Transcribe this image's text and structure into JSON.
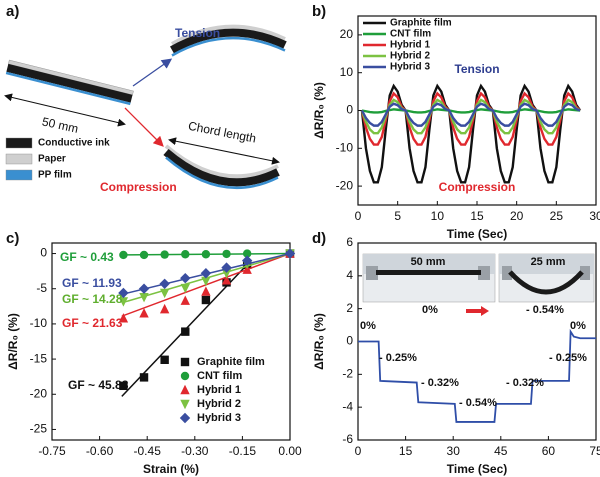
{
  "diagram": {
    "panel_label": "a)",
    "tension": "Tension",
    "length": "50 mm",
    "chord": "Chord length",
    "compression": "Compression",
    "legend": [
      {
        "name": "Conductive ink",
        "color": "#1a1a1a"
      },
      {
        "name": "Paper",
        "color": "#cfcfcf"
      },
      {
        "name": "PP film",
        "color": "#3a8fd0"
      }
    ]
  },
  "chart_data": [
    {
      "type": "line",
      "panel_label": "b)",
      "xlabel": "Time (Sec)",
      "ylabel": "ΔR/R₀ (%)",
      "xlim": [
        0,
        30
      ],
      "ylim": [
        -25,
        25
      ],
      "xticks": [
        0,
        5,
        10,
        15,
        20,
        25,
        30
      ],
      "yticks": [
        -20,
        -10,
        0,
        10,
        20
      ],
      "legend": "upper left",
      "x": [
        0.5,
        1,
        1.5,
        2,
        2.5,
        3,
        3.5,
        4,
        4.5,
        5,
        5.5,
        6,
        6.5,
        7,
        7.5,
        8,
        8.5,
        9,
        9.5,
        10,
        10.5,
        11,
        11.5,
        12,
        12.5,
        13,
        13.5,
        14,
        14.5,
        15,
        15.5,
        16,
        16.5,
        17,
        17.5,
        18,
        18.5,
        19,
        19.5,
        20,
        20.5,
        21,
        21.5,
        22,
        22.5,
        23,
        23.5,
        24,
        24.5,
        25,
        25.5,
        26,
        26.5,
        27,
        27.5,
        28
      ],
      "series": [
        {
          "name": "Graphite film",
          "color": "#111111",
          "values": [
            0,
            -10,
            -16,
            -19,
            -19,
            -15,
            -5,
            4,
            6.5,
            5,
            1.5,
            0,
            -10,
            -16,
            -19,
            -19,
            -15,
            -5,
            4,
            6.5,
            5,
            1.5,
            0,
            -10,
            -16,
            -19,
            -19,
            -15,
            -5,
            4,
            6.5,
            5,
            1.5,
            0,
            -10,
            -16,
            -19,
            -19,
            -15,
            -5,
            4,
            6.5,
            5,
            1.5,
            0,
            -10,
            -16,
            -19,
            -19,
            -15,
            -5,
            4,
            6.5,
            5,
            1.5,
            0
          ]
        },
        {
          "name": "CNT film",
          "color": "#1f9e3a",
          "values": [
            0,
            -0.2,
            -0.4,
            -0.5,
            -0.5,
            -0.4,
            -0.1,
            0.1,
            0.3,
            0.2,
            0.1,
            0,
            -0.2,
            -0.4,
            -0.5,
            -0.5,
            -0.4,
            -0.1,
            0.1,
            0.3,
            0.2,
            0.1,
            0,
            -0.2,
            -0.4,
            -0.5,
            -0.5,
            -0.4,
            -0.1,
            0.1,
            0.3,
            0.2,
            0.1,
            0,
            -0.2,
            -0.4,
            -0.5,
            -0.5,
            -0.4,
            -0.1,
            0.1,
            0.3,
            0.2,
            0.1,
            0,
            -0.2,
            -0.4,
            -0.5,
            -0.5,
            -0.4,
            -0.1,
            0.1,
            0.3,
            0.2,
            0.1,
            0
          ]
        },
        {
          "name": "Hybrid 1",
          "color": "#e0282e",
          "values": [
            0,
            -4.5,
            -7.5,
            -9,
            -9,
            -7,
            -2.5,
            2.5,
            4.5,
            3.5,
            1,
            0,
            -4.5,
            -7.5,
            -9,
            -9,
            -7,
            -2.5,
            2.5,
            4.5,
            3.5,
            1,
            0,
            -4.5,
            -7.5,
            -9,
            -9,
            -7,
            -2.5,
            2.5,
            4.5,
            3.5,
            1,
            0,
            -4.5,
            -7.5,
            -9,
            -9,
            -7,
            -2.5,
            2.5,
            4.5,
            3.5,
            1,
            0,
            -4.5,
            -7.5,
            -9,
            -9,
            -7,
            -2.5,
            2.5,
            4.5,
            3.5,
            1,
            0
          ]
        },
        {
          "name": "Hybrid 2",
          "color": "#7cc242",
          "values": [
            0,
            -3,
            -5,
            -6,
            -6,
            -4.5,
            -1.5,
            1.5,
            2.8,
            2.2,
            0.6,
            0,
            -3,
            -5,
            -6,
            -6,
            -4.5,
            -1.5,
            1.5,
            2.8,
            2.2,
            0.6,
            0,
            -3,
            -5,
            -6,
            -6,
            -4.5,
            -1.5,
            1.5,
            2.8,
            2.2,
            0.6,
            0,
            -3,
            -5,
            -6,
            -6,
            -4.5,
            -1.5,
            1.5,
            2.8,
            2.2,
            0.6,
            0,
            -3,
            -5,
            -6,
            -6,
            -4.5,
            -1.5,
            1.5,
            2.8,
            2.2,
            0.6,
            0
          ]
        },
        {
          "name": "Hybrid 3",
          "color": "#3a4ea0",
          "values": [
            0,
            -2,
            -3.3,
            -4,
            -4,
            -3,
            -1,
            1,
            1.8,
            1.4,
            0.4,
            0,
            -2,
            -3.3,
            -4,
            -4,
            -3,
            -1,
            1,
            1.8,
            1.4,
            0.4,
            0,
            -2,
            -3.3,
            -4,
            -4,
            -3,
            -1,
            1,
            1.8,
            1.4,
            0.4,
            0,
            -2,
            -3.3,
            -4,
            -4,
            -3,
            -1,
            1,
            1.8,
            1.4,
            0.4,
            0,
            -2,
            -3.3,
            -4,
            -4,
            -3,
            -1,
            1,
            1.8,
            1.4,
            0.4,
            0
          ]
        }
      ],
      "annotations": [
        {
          "text": "Tension",
          "color": "#2e3d8f"
        },
        {
          "text": "Compression",
          "color": "#e0282e"
        }
      ]
    },
    {
      "type": "scatter",
      "panel_label": "c)",
      "xlabel": "Strain (%)",
      "ylabel": "ΔR/R₀ (%)",
      "xlim": [
        -0.75,
        0
      ],
      "ylim": [
        -26.5,
        1.5
      ],
      "xticks": [
        -0.75,
        {
          "value": -0.6,
          "label": "-0.60"
        },
        -0.45,
        {
          "value": -0.3,
          "label": "-0.30"
        },
        -0.15,
        {
          "value": 0,
          "label": "0.00"
        }
      ],
      "yticks": [
        0,
        -5,
        -10,
        -15,
        -20,
        -25
      ],
      "legend": "lower right",
      "x": [
        -0.525,
        -0.46,
        -0.395,
        -0.33,
        -0.265,
        -0.2,
        -0.135,
        0
      ],
      "series": [
        {
          "name": "Graphite film",
          "color": "#111111",
          "marker": "square",
          "values": [
            -18.8,
            -17.6,
            -15.1,
            -11.1,
            -6.6,
            -4.1,
            -1.6,
            0
          ],
          "fit": {
            "x": [
              -0.53,
              -0.14
            ],
            "y": [
              -20.3,
              -1.8
            ]
          }
        },
        {
          "name": "CNT film",
          "color": "#1f9e3a",
          "marker": "circle",
          "values": [
            -0.2,
            -0.2,
            -0.15,
            -0.1,
            -0.1,
            -0.05,
            0,
            0
          ],
          "fit": {
            "x": [
              -0.53,
              0
            ],
            "y": [
              -0.2,
              0
            ]
          }
        },
        {
          "name": "Hybrid 1",
          "color": "#e0282e",
          "marker": "triangle-up",
          "values": [
            -9.2,
            -8.5,
            -7.9,
            -6.7,
            -5.4,
            -3.8,
            -2.3,
            0
          ],
          "fit": {
            "x": [
              -0.53,
              0
            ],
            "y": [
              -8.9,
              0
            ]
          }
        },
        {
          "name": "Hybrid 2",
          "color": "#7cc242",
          "marker": "triangle-down",
          "values": [
            -6.8,
            -6.2,
            -5.6,
            -4.9,
            -3.9,
            -2.8,
            -1.5,
            0
          ],
          "fit": {
            "x": [
              -0.53,
              0
            ],
            "y": [
              -7.0,
              0
            ]
          }
        },
        {
          "name": "Hybrid 3",
          "color": "#3a4ea0",
          "marker": "diamond",
          "values": [
            -5.6,
            -5.0,
            -4.3,
            -3.5,
            -2.8,
            -2.0,
            -1.0,
            0
          ],
          "fit": {
            "x": [
              -0.53,
              0
            ],
            "y": [
              -5.8,
              0
            ]
          }
        }
      ],
      "annotations": [
        {
          "text": "GF ~ 0.43",
          "color": "#1f9e3a"
        },
        {
          "text": "GF ~ 11.93",
          "color": "#3a4ea0"
        },
        {
          "text": "GF ~ 14.28",
          "color": "#5fae2e"
        },
        {
          "text": "GF ~ 21.63",
          "color": "#e0282e"
        },
        {
          "text": "GF ~ 45.88",
          "color": "#111111"
        }
      ]
    },
    {
      "type": "line",
      "panel_label": "d)",
      "xlabel": "Time (Sec)",
      "ylabel": "ΔR/R₀ (%)",
      "xlim": [
        0,
        75
      ],
      "ylim": [
        -6,
        6
      ],
      "xticks": [
        0,
        15,
        30,
        45,
        60,
        75
      ],
      "yticks": [
        -6,
        -4,
        -2,
        0,
        2,
        4,
        6
      ],
      "x": [
        0,
        6.5,
        7,
        18.5,
        19,
        30.5,
        31,
        43,
        43.5,
        54.5,
        55,
        66.5,
        67,
        68,
        70,
        75
      ],
      "series": [
        {
          "color": "#2f4ea8",
          "values": [
            0,
            0,
            -2.4,
            -2.5,
            -3.7,
            -3.8,
            -4.9,
            -4.9,
            -3.8,
            -3.8,
            -2.4,
            -2.4,
            0.6,
            0.3,
            0.2,
            0.2
          ]
        }
      ],
      "annotations": [
        {
          "text": "0%",
          "color": "#111111"
        },
        {
          "text": "- 0.25%",
          "color": "#111111"
        },
        {
          "text": "- 0.32%",
          "color": "#111111"
        },
        {
          "text": "- 0.54%",
          "color": "#111111"
        },
        {
          "text": "- 0.32%",
          "color": "#111111"
        },
        {
          "text": "- 0.25%",
          "color": "#111111"
        },
        {
          "text": "0%",
          "color": "#111111"
        },
        {
          "text": "50 mm",
          "color": "#111111"
        },
        {
          "text": "25 mm",
          "color": "#111111"
        },
        {
          "text": "0%",
          "color": "#111111"
        },
        {
          "text": "- 0.54%",
          "color": "#111111"
        }
      ]
    }
  ]
}
